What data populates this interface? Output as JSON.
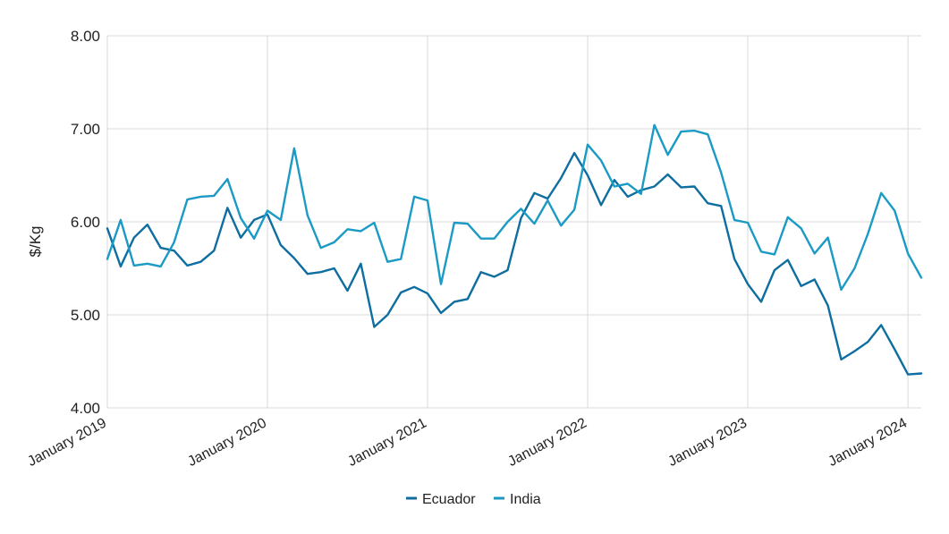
{
  "chart_data": {
    "type": "line",
    "ylabel": "$/Kg",
    "xlabel": "",
    "ylim": [
      4.0,
      8.0
    ],
    "y_ticks": [
      "4.00",
      "5.00",
      "6.00",
      "7.00",
      "8.00"
    ],
    "x_tick_labels": [
      "January 2019",
      "January 2020",
      "January 2021",
      "January 2022",
      "January 2023",
      "January 2024"
    ],
    "x_tick_months": [
      0,
      12,
      24,
      36,
      48,
      60
    ],
    "x_range_months": [
      0,
      61
    ],
    "grid": true,
    "legend_position": "bottom-center",
    "series": [
      {
        "name": "Ecuador",
        "color": "#0e6ea0",
        "values": [
          5.93,
          5.52,
          5.83,
          5.97,
          5.72,
          5.69,
          5.53,
          5.57,
          5.69,
          6.15,
          5.83,
          6.02,
          6.08,
          5.75,
          5.61,
          5.44,
          5.46,
          5.5,
          5.26,
          5.55,
          4.87,
          5.0,
          5.24,
          5.3,
          5.23,
          5.02,
          5.14,
          5.17,
          5.46,
          5.41,
          5.48,
          6.04,
          6.31,
          6.25,
          6.47,
          6.74,
          6.5,
          6.18,
          6.45,
          6.27,
          6.34,
          6.38,
          6.51,
          6.37,
          6.38,
          6.2,
          6.17,
          5.6,
          5.33,
          5.14,
          5.48,
          5.59,
          5.31,
          5.38,
          5.1,
          4.52,
          4.61,
          4.71,
          4.89,
          4.63,
          4.36,
          4.37
        ]
      },
      {
        "name": "India",
        "color": "#1a9ac4",
        "values": [
          5.6,
          6.02,
          5.53,
          5.55,
          5.52,
          5.78,
          6.24,
          6.27,
          6.28,
          6.46,
          6.04,
          5.82,
          6.12,
          6.02,
          6.79,
          6.07,
          5.72,
          5.78,
          5.92,
          5.9,
          5.99,
          5.57,
          5.6,
          6.27,
          6.23,
          5.33,
          5.99,
          5.98,
          5.82,
          5.82,
          6.0,
          6.14,
          5.98,
          6.23,
          5.96,
          6.13,
          6.83,
          6.66,
          6.38,
          6.41,
          6.3,
          7.04,
          6.72,
          6.97,
          6.98,
          6.94,
          6.53,
          6.02,
          5.99,
          5.68,
          5.65,
          6.05,
          5.93,
          5.66,
          5.83,
          5.27,
          5.5,
          5.87,
          6.31,
          6.12,
          5.66,
          5.4
        ]
      }
    ]
  }
}
